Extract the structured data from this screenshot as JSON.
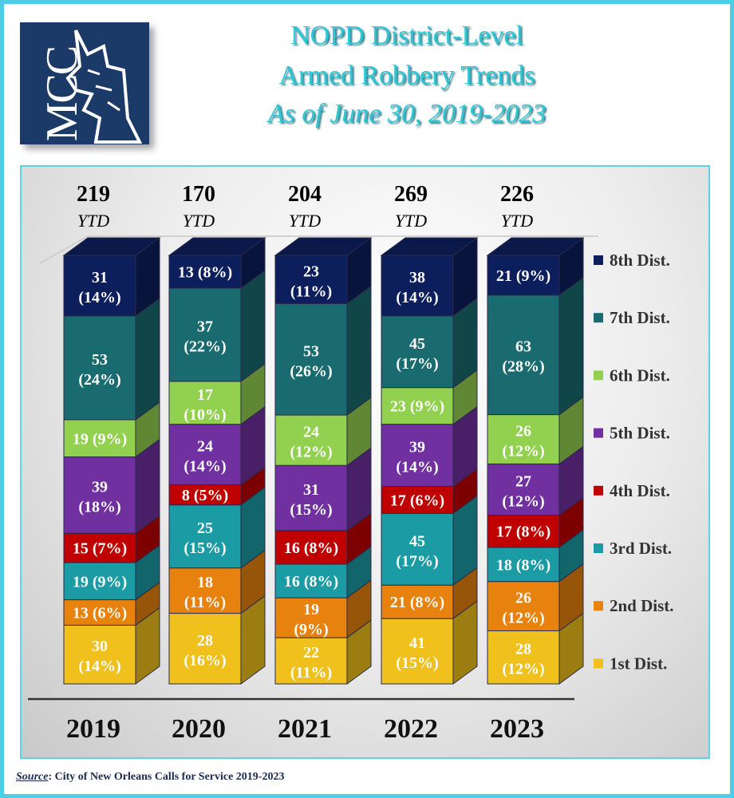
{
  "title": {
    "line1": "NOPD District-Level",
    "line2": "Armed Robbery Trends",
    "line3": "As of June 30, 2019-2023"
  },
  "logo": {
    "text": "MCC"
  },
  "source": {
    "label": "Source",
    "text": ":  City of New Orleans Calls for Service 2019-2023"
  },
  "chart_data": {
    "type": "bar",
    "stacked": true,
    "categories": [
      "2019",
      "2020",
      "2021",
      "2022",
      "2023"
    ],
    "totals": [
      219,
      170,
      204,
      269,
      226
    ],
    "total_suffix": "YTD",
    "legend_position": "right",
    "series": [
      {
        "name": "1st Dist.",
        "color": "#f0c01c",
        "values": [
          30,
          28,
          22,
          41,
          28
        ],
        "pct": [
          14,
          16,
          11,
          15,
          12
        ]
      },
      {
        "name": "2nd Dist.",
        "color": "#e8820e",
        "values": [
          13,
          18,
          19,
          21,
          26
        ],
        "pct": [
          6,
          11,
          9,
          8,
          12
        ]
      },
      {
        "name": "3rd Dist.",
        "color": "#1b9ba3",
        "values": [
          19,
          25,
          16,
          45,
          18
        ],
        "pct": [
          9,
          15,
          8,
          17,
          8
        ]
      },
      {
        "name": "4th Dist.",
        "color": "#c00000",
        "values": [
          15,
          8,
          16,
          17,
          17
        ],
        "pct": [
          7,
          5,
          8,
          6,
          8
        ]
      },
      {
        "name": "5th Dist.",
        "color": "#7030a0",
        "values": [
          39,
          24,
          31,
          39,
          27
        ],
        "pct": [
          18,
          14,
          15,
          14,
          12
        ]
      },
      {
        "name": "6th Dist.",
        "color": "#92d050",
        "values": [
          19,
          17,
          24,
          23,
          26
        ],
        "pct": [
          9,
          10,
          12,
          9,
          12
        ]
      },
      {
        "name": "7th Dist.",
        "color": "#1a6b6f",
        "values": [
          53,
          37,
          53,
          45,
          63
        ],
        "pct": [
          24,
          22,
          26,
          17,
          28
        ]
      },
      {
        "name": "8th Dist.",
        "color": "#0c1f5c",
        "values": [
          31,
          13,
          23,
          38,
          21
        ],
        "pct": [
          14,
          8,
          11,
          14,
          9
        ]
      }
    ]
  }
}
